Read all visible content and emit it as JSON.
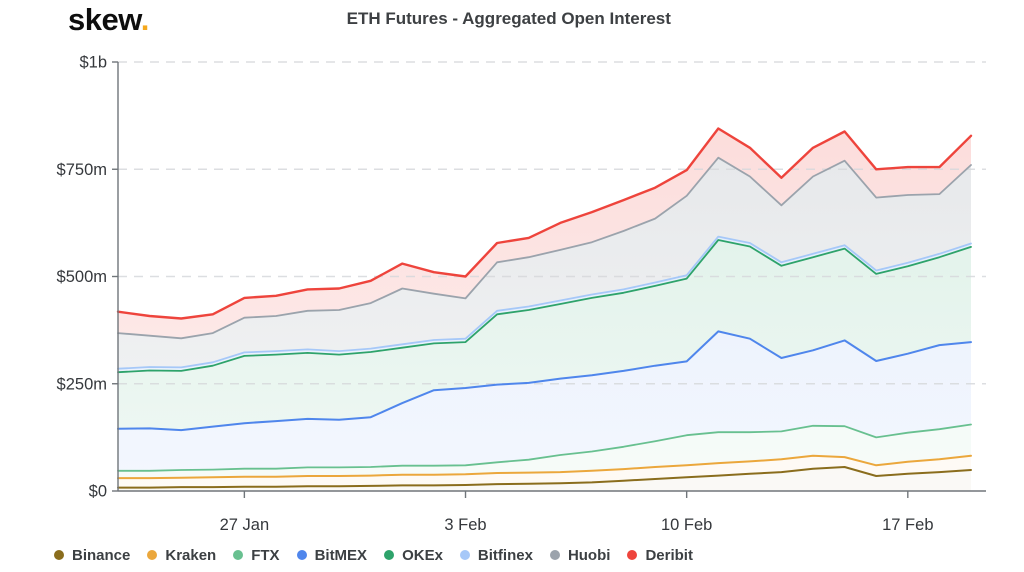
{
  "header": {
    "logo_text": "skew",
    "logo_dot": ".",
    "title": "ETH Futures - Aggregated Open Interest"
  },
  "chart_data": {
    "type": "area",
    "stacked": true,
    "title": "ETH Futures - Aggregated Open Interest",
    "y_unit": "millions USD",
    "ylim": [
      0,
      1000
    ],
    "grid": "dashed horizontal gridlines at labeled y levels",
    "legend_position": "bottom",
    "x": [
      "23 Jan",
      "24 Jan",
      "25 Jan",
      "26 Jan",
      "27 Jan",
      "28 Jan",
      "29 Jan",
      "30 Jan",
      "31 Jan",
      "1 Feb",
      "2 Feb",
      "3 Feb",
      "4 Feb",
      "5 Feb",
      "6 Feb",
      "7 Feb",
      "8 Feb",
      "9 Feb",
      "10 Feb",
      "11 Feb",
      "12 Feb",
      "13 Feb",
      "14 Feb",
      "15 Feb",
      "16 Feb",
      "17 Feb",
      "18 Feb",
      "19 Feb"
    ],
    "x_ticks": [
      {
        "index": 4,
        "label": "27 Jan"
      },
      {
        "index": 11,
        "label": "3 Feb"
      },
      {
        "index": 18,
        "label": "10 Feb"
      },
      {
        "index": 25,
        "label": "17 Feb"
      }
    ],
    "y_ticks": [
      {
        "value": 0,
        "label": "$0"
      },
      {
        "value": 250,
        "label": "$250m"
      },
      {
        "value": 500,
        "label": "$500m"
      },
      {
        "value": 750,
        "label": "$750m"
      },
      {
        "value": 1000,
        "label": "$1b"
      }
    ],
    "series": [
      {
        "name": "Binance",
        "color": "#8a6d1d",
        "fill_opacity": 0.1,
        "line_width": 2,
        "values": [
          8,
          8,
          9,
          9,
          10,
          10,
          11,
          11,
          12,
          13,
          13,
          14,
          16,
          17,
          18,
          20,
          24,
          28,
          32,
          36,
          40,
          44,
          52,
          56,
          35,
          40,
          44,
          49
        ]
      },
      {
        "name": "Kraken",
        "color": "#eba73c",
        "fill_opacity": 0.12,
        "line_width": 2,
        "values": [
          22,
          22,
          22,
          23,
          23,
          23,
          24,
          24,
          24,
          25,
          25,
          25,
          26,
          26,
          26,
          27,
          27,
          28,
          28,
          29,
          29,
          30,
          30,
          23,
          25,
          28,
          30,
          33
        ]
      },
      {
        "name": "FTX",
        "color": "#68c090",
        "fill_opacity": 0.14,
        "line_width": 1.8,
        "values": [
          17,
          17,
          18,
          18,
          19,
          19,
          20,
          20,
          20,
          21,
          21,
          21,
          25,
          30,
          40,
          45,
          52,
          60,
          70,
          72,
          68,
          65,
          70,
          72,
          65,
          68,
          70,
          73
        ]
      },
      {
        "name": "BitMEX",
        "color": "#4f86ec",
        "fill_opacity": 0.16,
        "line_width": 2,
        "values": [
          98,
          99,
          93,
          100,
          106,
          111,
          113,
          111,
          116,
          146,
          176,
          180,
          181,
          179,
          178,
          178,
          177,
          176,
          172,
          235,
          218,
          171,
          176,
          200,
          178,
          184,
          196,
          192
        ]
      },
      {
        "name": "OKEx",
        "color": "#2ea36b",
        "fill_opacity": 0.18,
        "line_width": 1.8,
        "values": [
          132,
          135,
          138,
          142,
          157,
          155,
          154,
          152,
          152,
          129,
          109,
          107,
          164,
          170,
          174,
          180,
          182,
          186,
          193,
          213,
          215,
          215,
          217,
          214,
          203,
          204,
          205,
          222
        ]
      },
      {
        "name": "Bitfinex",
        "color": "#a6c8f8",
        "fill_opacity": 0.4,
        "line_width": 1.8,
        "values": [
          8,
          8,
          8,
          8,
          8,
          8,
          8,
          8,
          8,
          8,
          8,
          8,
          8,
          8,
          8,
          8,
          8,
          8,
          8,
          8,
          8,
          8,
          8,
          8,
          8,
          8,
          8,
          8
        ]
      },
      {
        "name": "Huobi",
        "color": "#9ba3ac",
        "fill_opacity": 0.28,
        "line_width": 1.8,
        "values": [
          83,
          73,
          68,
          68,
          81,
          82,
          90,
          96,
          106,
          130,
          108,
          94,
          113,
          115,
          118,
          122,
          136,
          149,
          185,
          184,
          155,
          133,
          180,
          197,
          170,
          158,
          139,
          183
        ]
      },
      {
        "name": "Deribit",
        "color": "#ee443c",
        "fill_opacity": 0.2,
        "line_width": 2.4,
        "values": [
          50,
          46,
          46,
          44,
          46,
          47,
          50,
          50,
          52,
          58,
          50,
          51,
          45,
          45,
          63,
          70,
          72,
          72,
          60,
          68,
          67,
          64,
          67,
          68,
          66,
          65,
          63,
          68
        ]
      }
    ]
  }
}
